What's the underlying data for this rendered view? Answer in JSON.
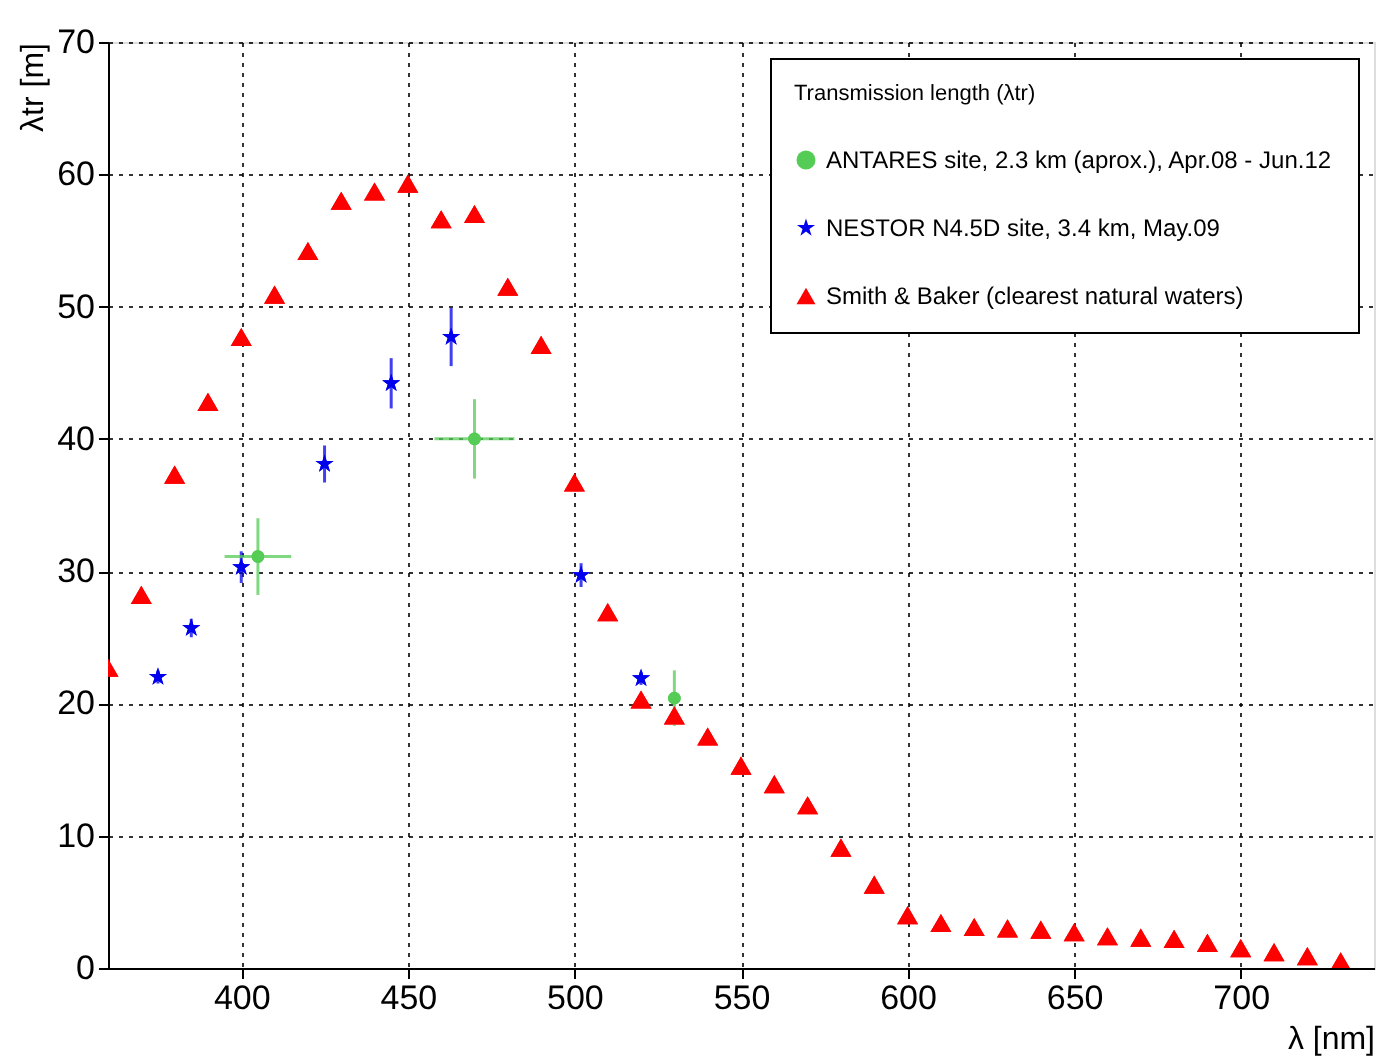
{
  "chart_data": {
    "type": "scatter",
    "xlabel": "λ [nm]",
    "ylabel": "λtr [m]",
    "legend_title": "Transmission length (λtr)",
    "xlim": [
      360,
      740
    ],
    "xticks": [
      400,
      450,
      500,
      550,
      600,
      650,
      700
    ],
    "ylim": [
      0,
      70
    ],
    "yticks": [
      0,
      10,
      20,
      30,
      40,
      50,
      60,
      70
    ],
    "grid": true,
    "legend": "top right",
    "series": [
      {
        "name": "ANTARES site, 2.3 km (aprox.), Apr.08 - Jun.12",
        "color": "#55cc55",
        "marker": "circle",
        "x": [
          405,
          470,
          530
        ],
        "values": [
          31.1,
          40.0,
          20.4
        ],
        "errors": [
          2.9,
          3.0,
          2.1
        ],
        "xerrors": [
          10,
          12,
          null
        ]
      },
      {
        "name": "NESTOR N4.5D site, 3.4 km, May.09",
        "color": "#0000ee",
        "marker": "star",
        "x": [
          375,
          385,
          400,
          425,
          445,
          463,
          502,
          520
        ],
        "values": [
          22.0,
          25.7,
          30.3,
          38.1,
          44.2,
          47.7,
          29.7,
          21.9
        ],
        "errors": [
          0.5,
          0.7,
          1.2,
          1.4,
          1.9,
          2.2,
          0.9,
          0.5
        ]
      },
      {
        "name": "Smith & Baker (clearest natural waters)",
        "color": "#ff0000",
        "marker": "triangle",
        "x": [
          360,
          370,
          380,
          390,
          400,
          410,
          420,
          430,
          440,
          450,
          460,
          470,
          480,
          490,
          500,
          510,
          520,
          530,
          540,
          550,
          560,
          570,
          580,
          590,
          600,
          610,
          620,
          630,
          640,
          650,
          660,
          670,
          680,
          690,
          700,
          710,
          720,
          730
        ],
        "values": [
          22.7,
          28.2,
          37.3,
          42.8,
          47.7,
          50.9,
          54.2,
          58.0,
          58.7,
          59.3,
          56.6,
          57.0,
          51.5,
          47.1,
          36.7,
          26.9,
          20.3,
          19.1,
          17.5,
          15.3,
          13.9,
          12.3,
          9.1,
          6.3,
          4.0,
          3.4,
          3.1,
          3.0,
          2.9,
          2.7,
          2.4,
          2.3,
          2.2,
          1.9,
          1.5,
          1.2,
          0.9,
          0.5
        ]
      }
    ]
  }
}
